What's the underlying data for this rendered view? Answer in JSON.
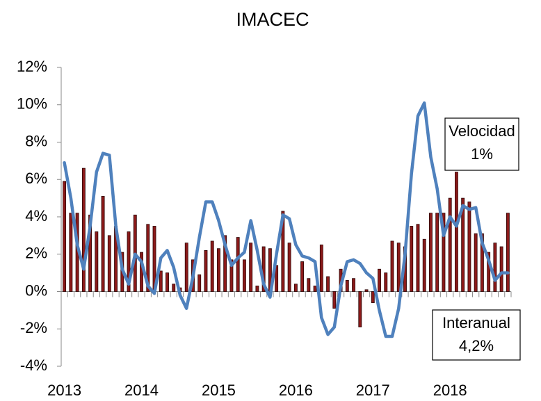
{
  "chart_data": {
    "type": "bar_line",
    "title": "IMACEC",
    "categories": [
      "2013",
      null,
      null,
      null,
      null,
      null,
      null,
      null,
      null,
      null,
      null,
      null,
      "2014",
      null,
      null,
      null,
      null,
      null,
      null,
      null,
      null,
      null,
      null,
      null,
      "2015",
      null,
      null,
      null,
      null,
      null,
      null,
      null,
      null,
      null,
      null,
      null,
      "2016",
      null,
      null,
      null,
      null,
      null,
      null,
      null,
      null,
      null,
      null,
      null,
      "2017",
      null,
      null,
      null,
      null,
      null,
      null,
      null,
      null,
      null,
      null,
      null,
      "2018",
      null,
      null,
      null,
      null,
      null,
      null,
      null,
      null,
      null
    ],
    "series": [
      {
        "name": "Interanual",
        "kind": "bar",
        "color": "#8b1a1a",
        "values": [
          5.9,
          4.2,
          4.2,
          6.6,
          4.1,
          3.2,
          5.1,
          3.0,
          3.5,
          2.1,
          3.2,
          4.1,
          2.1,
          3.6,
          3.5,
          1.1,
          1.0,
          0.4,
          0.2,
          2.6,
          1.7,
          0.9,
          2.2,
          2.7,
          2.3,
          3.0,
          1.7,
          2.9,
          1.7,
          2.6,
          0.3,
          2.4,
          2.3,
          1.4,
          4.3,
          2.6,
          0.4,
          1.6,
          0.7,
          0.3,
          2.5,
          0.8,
          -0.9,
          1.2,
          0.6,
          0.7,
          -1.9,
          0.1,
          -0.6,
          1.2,
          1.0,
          2.7,
          2.6,
          2.4,
          3.5,
          3.6,
          2.8,
          4.2,
          4.2,
          4.2,
          5.0,
          6.4,
          5.0,
          4.8,
          3.1,
          3.1,
          2.1,
          2.6,
          2.4,
          4.2
        ]
      },
      {
        "name": "Velocidad",
        "kind": "line",
        "color": "#4f81bd",
        "values": [
          6.9,
          5.0,
          2.5,
          1.2,
          3.5,
          6.4,
          7.4,
          7.3,
          3.5,
          1.2,
          0.4,
          2.0,
          1.6,
          0.3,
          -0.1,
          1.8,
          2.2,
          1.3,
          -0.2,
          -0.9,
          0.8,
          2.9,
          4.8,
          4.8,
          3.8,
          2.5,
          1.4,
          1.8,
          2.1,
          3.8,
          2.2,
          0.4,
          -0.3,
          2.0,
          4.1,
          3.9,
          2.5,
          1.9,
          1.8,
          1.6,
          -1.4,
          -2.3,
          -1.9,
          0.3,
          1.6,
          1.7,
          1.5,
          1.0,
          0.7,
          -1.0,
          -2.4,
          -2.4,
          -0.9,
          2.0,
          6.3,
          9.4,
          10.1,
          7.2,
          5.5,
          3.0,
          4.0,
          3.5,
          4.6,
          4.4,
          4.5,
          2.6,
          1.7,
          0.6,
          1.0,
          1.0
        ]
      }
    ],
    "ylim": [
      -4,
      12
    ],
    "yticks": [
      {
        "value": -4,
        "label": "-4%"
      },
      {
        "value": -2,
        "label": "-2%"
      },
      {
        "value": 0,
        "label": "0%"
      },
      {
        "value": 2,
        "label": "2%"
      },
      {
        "value": 4,
        "label": "4%"
      },
      {
        "value": 6,
        "label": "6%"
      },
      {
        "value": 8,
        "label": "8%"
      },
      {
        "value": 10,
        "label": "10%"
      },
      {
        "value": 12,
        "label": "12%"
      }
    ],
    "grid": false,
    "annotations": [
      {
        "lines": [
          "Velocidad",
          "1%"
        ]
      },
      {
        "lines": [
          "Interanual",
          "4,2%"
        ]
      }
    ]
  }
}
